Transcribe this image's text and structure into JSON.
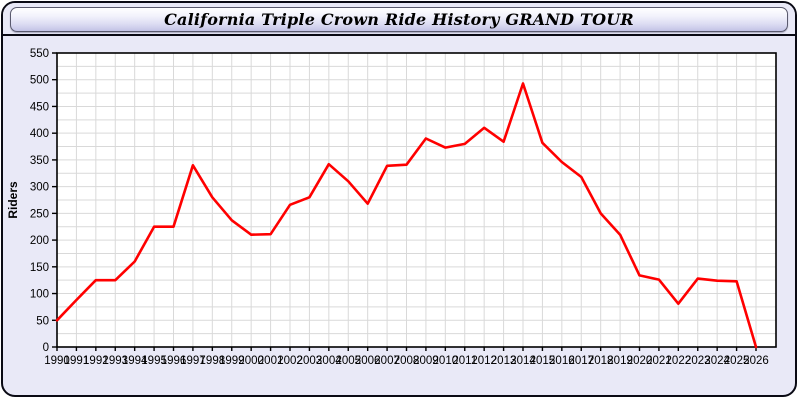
{
  "header": {
    "title": "California Triple Crown Ride History GRAND TOUR"
  },
  "colors": {
    "page_bg": "#ffffff",
    "panel_bg": "#e9e9f7",
    "titlebar_top": "#ffffff",
    "titlebar_bottom": "#c3c3e6",
    "plot_bg": "#ffffff",
    "grid": "#d9d9d9",
    "axis": "#000000",
    "line": "#ff0000",
    "text": "#000000"
  },
  "chart_data": {
    "type": "line",
    "title": "California Triple Crown Ride History GRAND TOUR",
    "xlabel": "",
    "ylabel": "Riders",
    "ylim": [
      0,
      550
    ],
    "y_tick_step": 50,
    "y_grid_step": 25,
    "grid": true,
    "legend": false,
    "x": [
      1990,
      1991,
      1992,
      1993,
      1994,
      1995,
      1996,
      1997,
      1998,
      1999,
      2000,
      2001,
      2002,
      2003,
      2004,
      2005,
      2006,
      2007,
      2008,
      2009,
      2010,
      2011,
      2012,
      2013,
      2014,
      2015,
      2016,
      2017,
      2018,
      2019,
      2020,
      2021,
      2022,
      2023,
      2024,
      2025,
      2026
    ],
    "series": [
      {
        "name": "Riders",
        "color": "#ff0000",
        "values": [
          50,
          88,
          125,
          125,
          160,
          225,
          225,
          340,
          280,
          237,
          210,
          211,
          266,
          280,
          342,
          310,
          268,
          339,
          341,
          390,
          373,
          380,
          410,
          384,
          493,
          382,
          346,
          318,
          250,
          210,
          134,
          126,
          81,
          128,
          124,
          123,
          0
        ]
      }
    ]
  }
}
